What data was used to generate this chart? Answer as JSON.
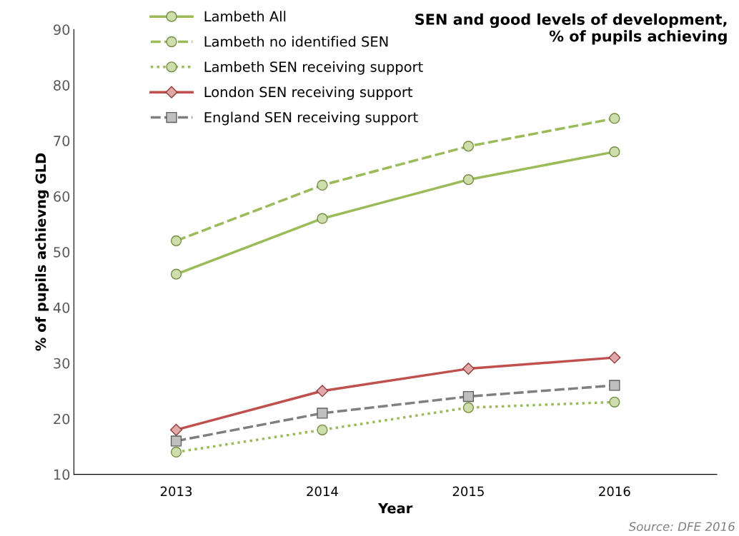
{
  "chart_data": {
    "type": "line",
    "title": "SEN and good levels of development,\n% of pupils achieving",
    "xlabel": "Year",
    "ylabel": "% of pupils achievng GLD",
    "categories": [
      "2013",
      "2014",
      "2015",
      "2016"
    ],
    "series": [
      {
        "name": "Lambeth All",
        "color": "#9bbb59",
        "values": [
          46,
          56,
          63,
          68
        ],
        "marker": "circle",
        "line_style": "solid"
      },
      {
        "name": "Lambeth no identified SEN",
        "color": "#9bbb59",
        "values": [
          52,
          62,
          69,
          74
        ],
        "marker": "circle",
        "line_style": "dashed"
      },
      {
        "name": "Lambeth SEN receiving support",
        "color": "#9bbb59",
        "values": [
          14,
          18,
          22,
          23
        ],
        "marker": "circle",
        "line_style": "dotted"
      },
      {
        "name": "London SEN receiving support",
        "color": "#c0504d",
        "values": [
          18,
          25,
          29,
          31
        ],
        "marker": "diamond",
        "line_style": "solid"
      },
      {
        "name": "England SEN receiving support",
        "color": "#7f7f7f",
        "values": [
          16,
          21,
          24,
          26
        ],
        "marker": "square",
        "line_style": "dashed"
      }
    ],
    "ylim": [
      10,
      90
    ],
    "yticks": [
      10,
      20,
      30,
      40,
      50,
      60,
      70,
      80,
      90
    ],
    "grid": false,
    "legend": "top left",
    "annotations": [
      "Source: DFE 2016"
    ]
  }
}
